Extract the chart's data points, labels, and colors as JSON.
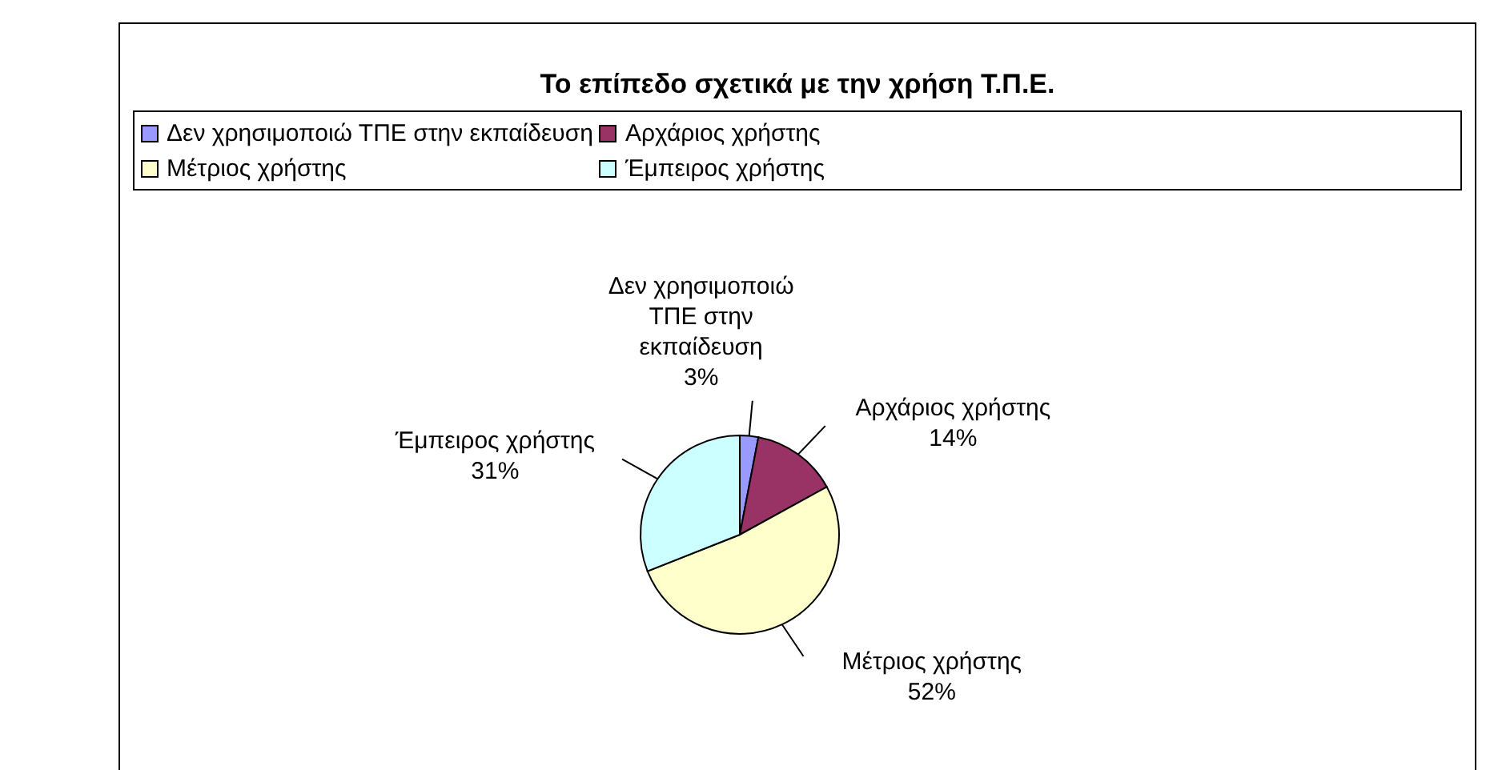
{
  "chart_data": {
    "type": "pie",
    "title": "Το επίπεδο σχετικά με την χρήση Τ.Π.Ε.",
    "categories": [
      "Δεν χρησιμοποιώ ΤΠΕ στην εκπαίδευση",
      "Αρχάριος χρήστης",
      "Μέτριος χρήστης",
      "Έμπειρος χρήστης"
    ],
    "values": [
      3,
      14,
      52,
      31
    ],
    "value_labels": [
      "3%",
      "14%",
      "52%",
      "31%"
    ],
    "colors": [
      "#9999ff",
      "#993366",
      "#ffffcc",
      "#ccffff"
    ],
    "legend": "top"
  }
}
